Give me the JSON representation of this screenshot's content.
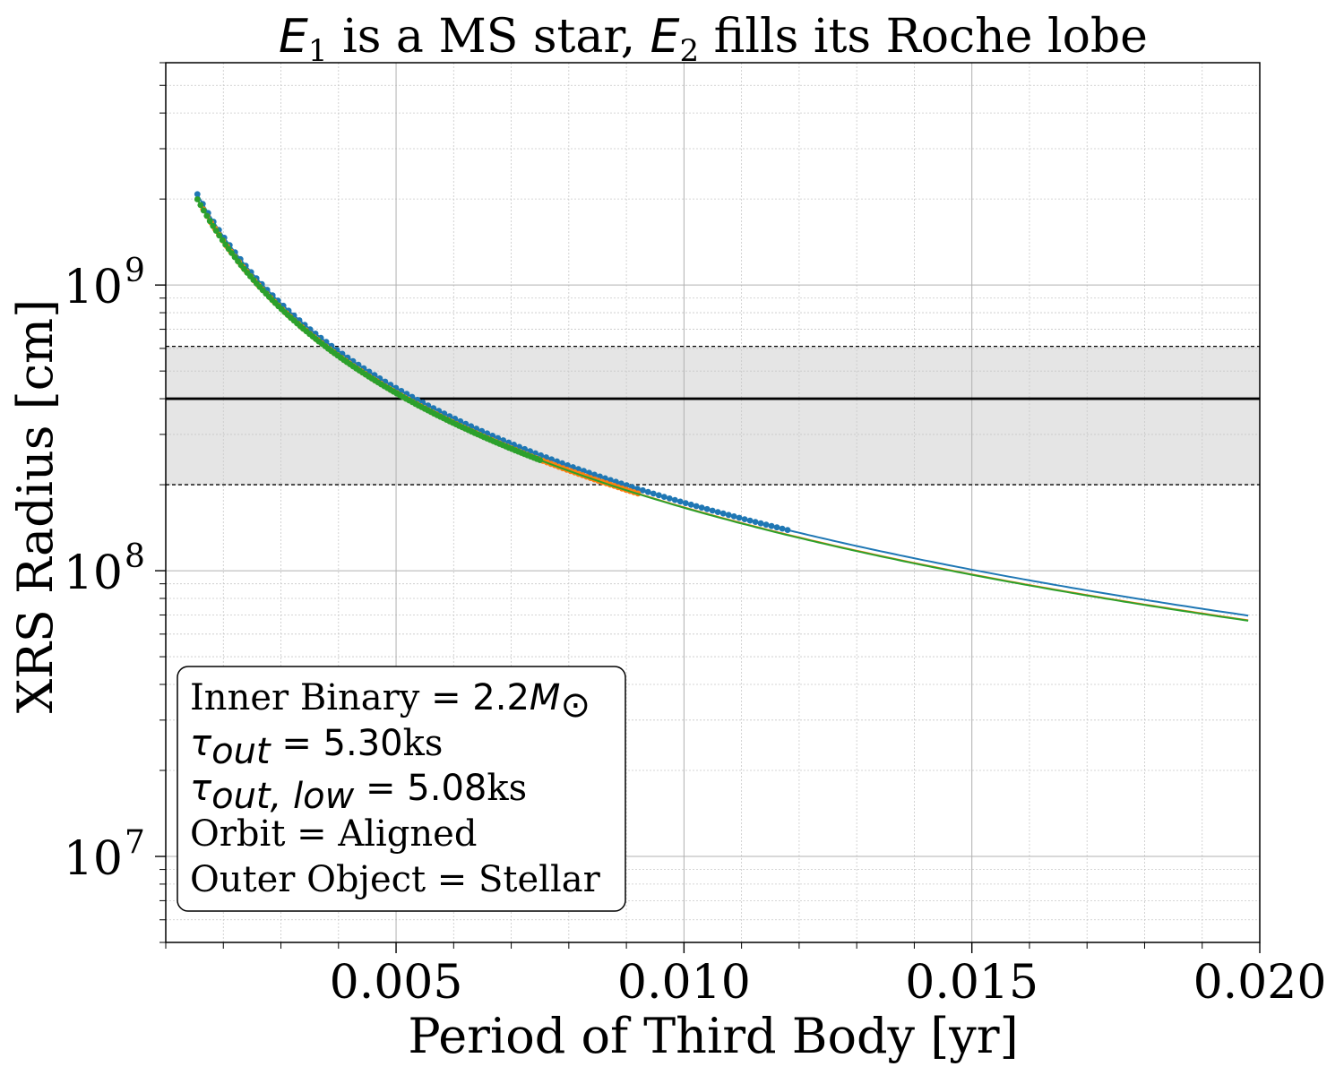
{
  "chart_data": {
    "type": "line",
    "title": {
      "e1": "E",
      "sub1": "1",
      "mid": " is a MS star, ",
      "e2": "E",
      "sub2": "2",
      "end": " fills its Roche lobe"
    },
    "xlabel": "Period of Third Body [yr]",
    "ylabel": "XRS Radius [cm]",
    "xlim": [
      0.001,
      0.02
    ],
    "ylim": [
      5000000,
      6000000000
    ],
    "yscale": "log",
    "grid": true,
    "x_ticks": [
      0.005,
      0.01,
      0.015,
      0.02
    ],
    "x_tick_labels": [
      "0.005",
      "0.010",
      "0.015",
      "0.020"
    ],
    "y_ticks": [
      10000000,
      100000000,
      1000000000
    ],
    "y_tick_labels": [
      {
        "base": "10",
        "exp": "7"
      },
      {
        "base": "10",
        "exp": "8"
      },
      {
        "base": "10",
        "exp": "9"
      }
    ],
    "band": {
      "center": 400000000,
      "low": 200000000,
      "high": 610000000,
      "color": "#e5e5e5"
    },
    "series": [
      {
        "color": "#1f77b4",
        "coef": 440000000.0,
        "x_start": 0.00155,
        "x_end": 0.0198,
        "marker_end": 0.0118,
        "offset": 0.012
      },
      {
        "color": "#ff7f0e",
        "coef": 420000000.0,
        "x_start": 0.00165,
        "x_end": 0.0198,
        "marker_end": 0.0092,
        "offset": 0.0
      },
      {
        "color": "#2ca02c",
        "coef": 415000000.0,
        "x_start": 0.00155,
        "x_end": 0.0198,
        "marker_end": 0.0075,
        "offset": -0.012
      }
    ],
    "annotation": {
      "line1_text": "Inner Binary",
      "line1_math": " = 2.2",
      "line1_m": "M",
      "line1_sun": "⊙",
      "line2_tau": "τ",
      "line2_sub": "out",
      "line2_eq": " = 5.30",
      "line2_unit": "ks",
      "line3_tau": "τ",
      "line3_sub": "out, low",
      "line3_eq": " = 5.08",
      "line3_unit": "ks",
      "line4": "Orbit = Aligned",
      "line5": "Outer Object = Stellar"
    }
  }
}
